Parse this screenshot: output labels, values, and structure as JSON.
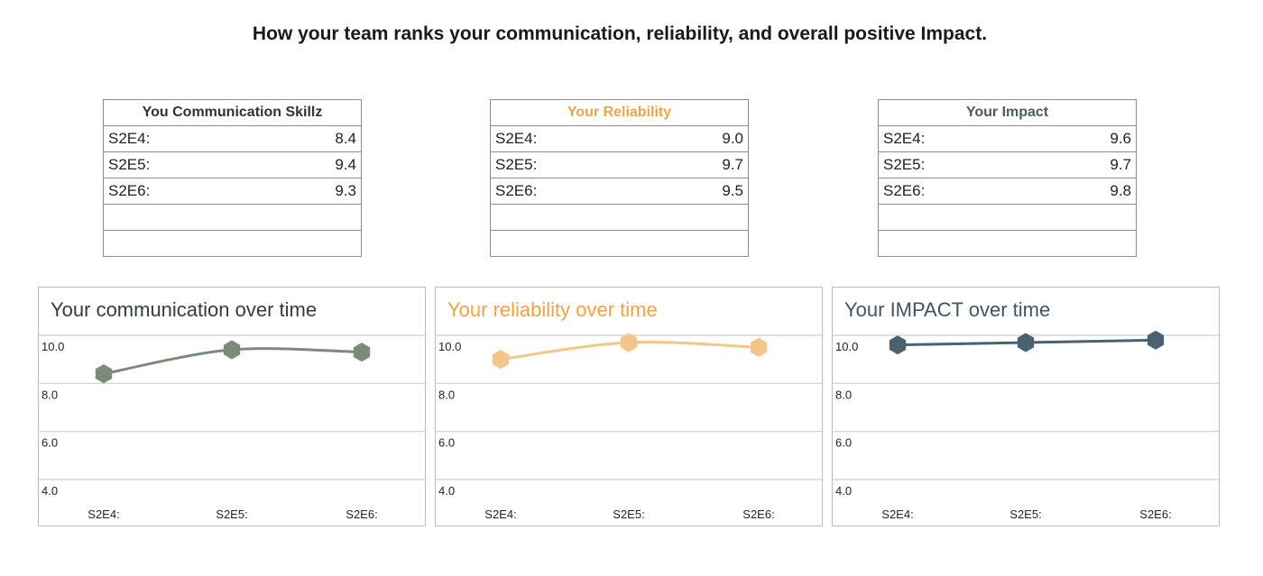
{
  "page_title": "How your team ranks your communication, reliability, and overall positive Impact.",
  "tables": [
    {
      "title": "You Communication Skillz",
      "title_color": "#333333",
      "rows": [
        {
          "label": "S2E4:",
          "value": "8.4"
        },
        {
          "label": "S2E5:",
          "value": "9.4"
        },
        {
          "label": "S2E6:",
          "value": "9.3"
        }
      ]
    },
    {
      "title": "Your Reliability",
      "title_color": "#f0a24a",
      "rows": [
        {
          "label": "S2E4:",
          "value": "9.0"
        },
        {
          "label": "S2E5:",
          "value": "9.7"
        },
        {
          "label": "S2E6:",
          "value": "9.5"
        }
      ]
    },
    {
      "title": "Your Impact",
      "title_color": "#4a5d66",
      "rows": [
        {
          "label": "S2E4:",
          "value": "9.6"
        },
        {
          "label": "S2E5:",
          "value": "9.7"
        },
        {
          "label": "S2E6:",
          "value": "9.8"
        }
      ]
    }
  ],
  "chart_data": [
    {
      "type": "line",
      "title": "Your communication over time",
      "title_color": "#333d3a",
      "categories": [
        "S2E4:",
        "S2E5:",
        "S2E6:"
      ],
      "series": [
        {
          "values": [
            8.4,
            9.4,
            9.3
          ],
          "color": "#7b8b7b"
        }
      ],
      "ylim": [
        4.0,
        10.0
      ],
      "yticks": [
        "10.0",
        "8.0",
        "6.0",
        "4.0"
      ],
      "grid": true,
      "marker": "hexagon"
    },
    {
      "type": "line",
      "title": "Your reliability over time",
      "title_color": "#f0a24a",
      "categories": [
        "S2E4:",
        "S2E5:",
        "S2E6:"
      ],
      "series": [
        {
          "values": [
            9.0,
            9.7,
            9.5
          ],
          "color": "#f2c58a"
        }
      ],
      "ylim": [
        4.0,
        10.0
      ],
      "yticks": [
        "10.0",
        "8.0",
        "6.0",
        "4.0"
      ],
      "grid": true,
      "marker": "hexagon"
    },
    {
      "type": "line",
      "title": "Your IMPACT over time",
      "title_color": "#3f5560",
      "categories": [
        "S2E4:",
        "S2E5:",
        "S2E6:"
      ],
      "series": [
        {
          "values": [
            9.6,
            9.7,
            9.8
          ],
          "color": "#4a6270"
        }
      ],
      "ylim": [
        4.0,
        10.0
      ],
      "yticks": [
        "10.0",
        "8.0",
        "6.0",
        "4.0"
      ],
      "grid": true,
      "marker": "hexagon"
    }
  ]
}
